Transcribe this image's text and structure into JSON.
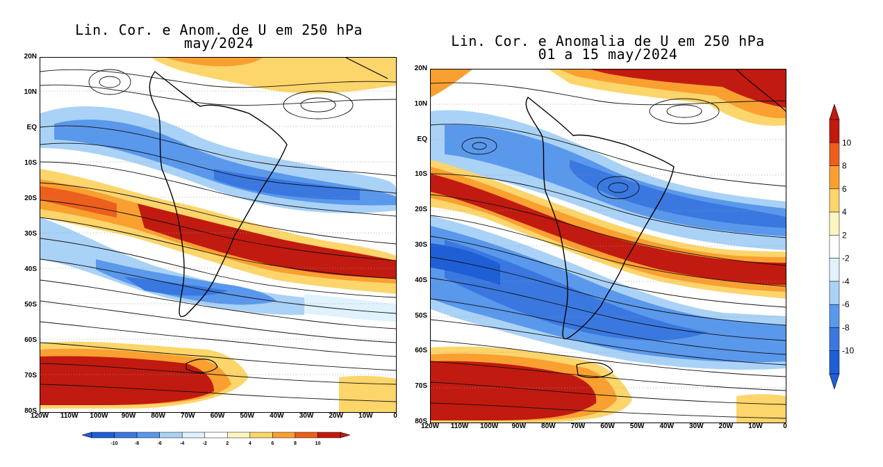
{
  "maps": [
    {
      "title_line1": "Lin. Cor. e Anom. de U em 250 hPa",
      "title_line2": "may/2024",
      "lat_labels": [
        "20N",
        "10N",
        "EQ",
        "10S",
        "20S",
        "30S",
        "40S",
        "50S",
        "60S",
        "70S",
        "80S"
      ],
      "lon_labels": [
        "120W",
        "110W",
        "100W",
        "90W",
        "80W",
        "70W",
        "60W",
        "50W",
        "40W",
        "30W",
        "20W",
        "10W",
        "0"
      ]
    },
    {
      "title_line1": "Lin. Cor. e Anomalia de U em 250 hPa",
      "title_line2": "01 a 15 may/2024",
      "lat_labels": [
        "20N",
        "10N",
        "EQ",
        "10S",
        "20S",
        "30S",
        "40S",
        "50S",
        "60S",
        "70S",
        "80S"
      ],
      "lon_labels": [
        "120W",
        "110W",
        "100W",
        "90W",
        "80W",
        "70W",
        "60W",
        "50W",
        "40W",
        "30W",
        "20W",
        "10W",
        "0"
      ]
    }
  ],
  "colorbar_horizontal": {
    "labels": [
      "-10",
      "-8",
      "-6",
      "-4",
      "-2",
      "2",
      "4",
      "6",
      "8",
      "10"
    ]
  },
  "colorbar_vertical": {
    "labels": [
      "10",
      "8",
      "6",
      "4",
      "2",
      "-2",
      "-4",
      "-6",
      "-8",
      "-10"
    ]
  },
  "colors": {
    "neg10": "#1f5fd6",
    "neg8": "#3a78e0",
    "neg6": "#5a98ec",
    "neg4": "#a9d2f6",
    "neg2": "#dff2fd",
    "zero": "#ffffff",
    "pos2": "#fef6c0",
    "pos4": "#fcd56b",
    "pos6": "#f9a031",
    "pos8": "#ec5f1c",
    "pos10": "#c11a10"
  }
}
